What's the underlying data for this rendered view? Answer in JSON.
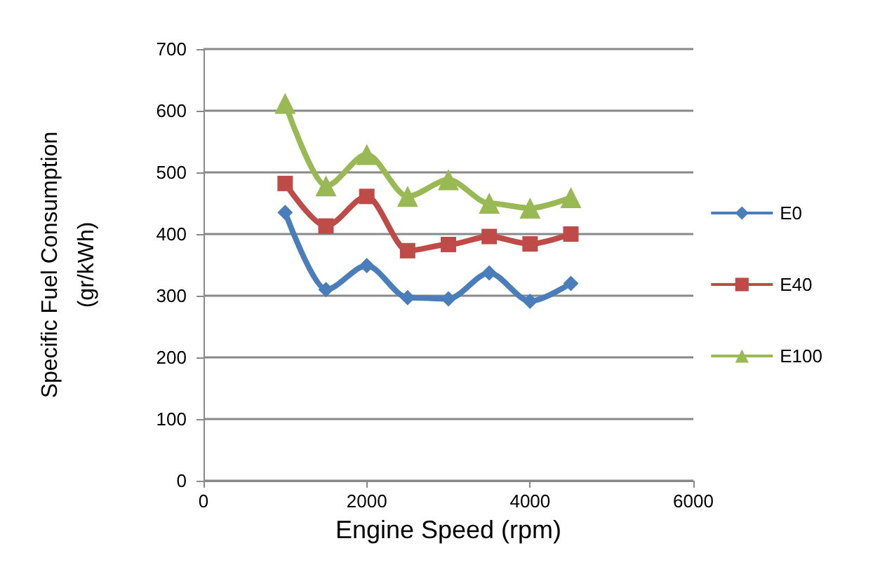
{
  "chart_data": {
    "type": "line",
    "xlabel": "Engine Speed (rpm)",
    "ylabel": "Specific Fuel Consumption\n(gr/kWh)",
    "x": [
      1000,
      1500,
      2000,
      2500,
      3000,
      3500,
      4000,
      4500
    ],
    "series": [
      {
        "name": "E0",
        "color": "#4a7ebb",
        "marker": "diamond",
        "values": [
          435,
          310,
          349,
          297,
          295,
          337,
          291,
          320
        ]
      },
      {
        "name": "E40",
        "color": "#be4b48",
        "marker": "square",
        "values": [
          482,
          413,
          461,
          373,
          383,
          396,
          384,
          400
        ]
      },
      {
        "name": "E100",
        "color": "#98b954",
        "marker": "triangle",
        "values": [
          612,
          478,
          529,
          461,
          488,
          450,
          442,
          459
        ]
      }
    ],
    "xlim": [
      0,
      6000
    ],
    "xticks": [
      0,
      2000,
      4000,
      6000
    ],
    "ylim": [
      0,
      700
    ],
    "yticks": [
      0,
      100,
      200,
      300,
      400,
      500,
      600,
      700
    ],
    "grid": "y",
    "legend": "right",
    "line_style": "solid"
  }
}
